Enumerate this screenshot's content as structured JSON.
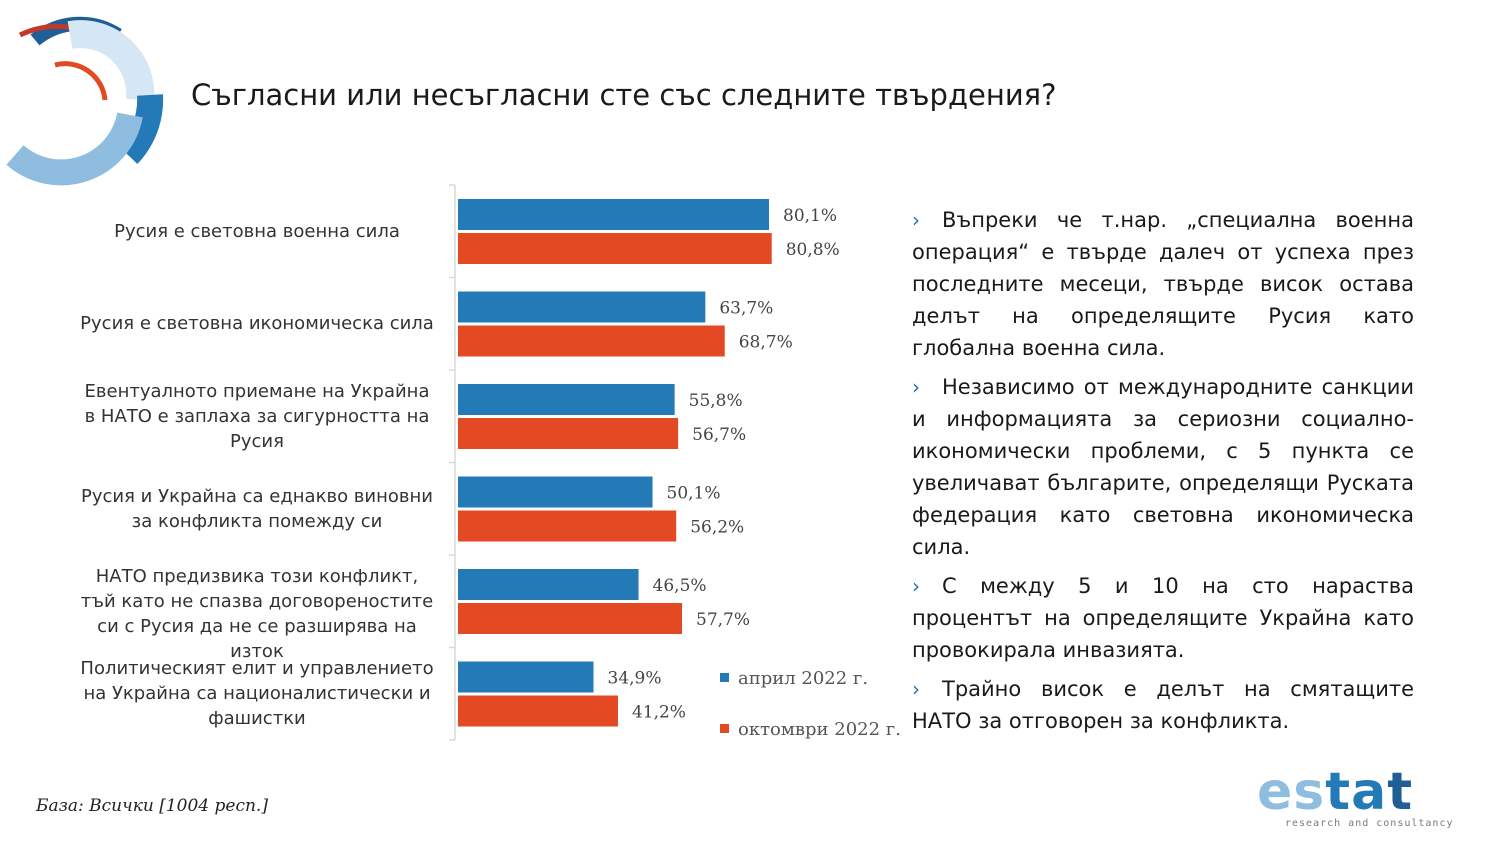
{
  "title": "Съгласни или несъгласни сте със следните твърдения?",
  "colors": {
    "april": "#2479b7",
    "october": "#e34a23",
    "accent": "#1f6fb2"
  },
  "legend": {
    "april": "април 2022 г.",
    "october": "октомври 2022 г."
  },
  "chart_data": {
    "type": "bar",
    "orientation": "horizontal",
    "categories": [
      "Русия е световна военна сила",
      "Русия е световна икономическа сила",
      "Евентуалното приемане на Украйна в НАТО е заплаха за сигурността на Русия",
      "Русия и Украйна са еднакво виновни за конфликта помежду си",
      "НАТО предизвика този конфликт, тъй като не спазва договореностите си с Русия да не се разширява на изток",
      "Политическият елит и управлението на Украйна са националистически и фашистки"
    ],
    "series": [
      {
        "name": "април 2022 г.",
        "values": [
          80.1,
          63.7,
          55.8,
          50.1,
          46.5,
          34.9
        ],
        "labels": [
          "80,1%",
          "63,7%",
          "55,8%",
          "50,1%",
          "46,5%",
          "34,9%"
        ]
      },
      {
        "name": "октомври 2022 г.",
        "values": [
          80.8,
          68.7,
          56.7,
          56.2,
          57.7,
          41.2
        ],
        "labels": [
          "80,8%",
          "68,7%",
          "56,7%",
          "56,2%",
          "57,7%",
          "41,2%"
        ]
      }
    ],
    "xlim": [
      0,
      100
    ],
    "grid": false,
    "legend_position": "bottom-right"
  },
  "bullets": [
    "Въпреки че т.нар. „специална военна операция“ е твърде далеч от успеха през последните месеци, твърде висок остава делът на определящите Русия като глобална военна сила.",
    "Независимо от международните санкции и информацията за сериозни социално-икономически проблеми, с 5 пункта се увеличават българите, определящи Руската федерация като световна икономическа сила.",
    "С между 5 и 10 на сто нараства процентът на определящите Украйна като провокирала инвазията.",
    "Трайно висок е делът на смятащите НАТО за отговорен за конфликта."
  ],
  "bullet_marker": "›",
  "base_note": "База: Всички [1004 респ.]",
  "logo": {
    "word": "estat",
    "tagline": "research and consultancy"
  }
}
